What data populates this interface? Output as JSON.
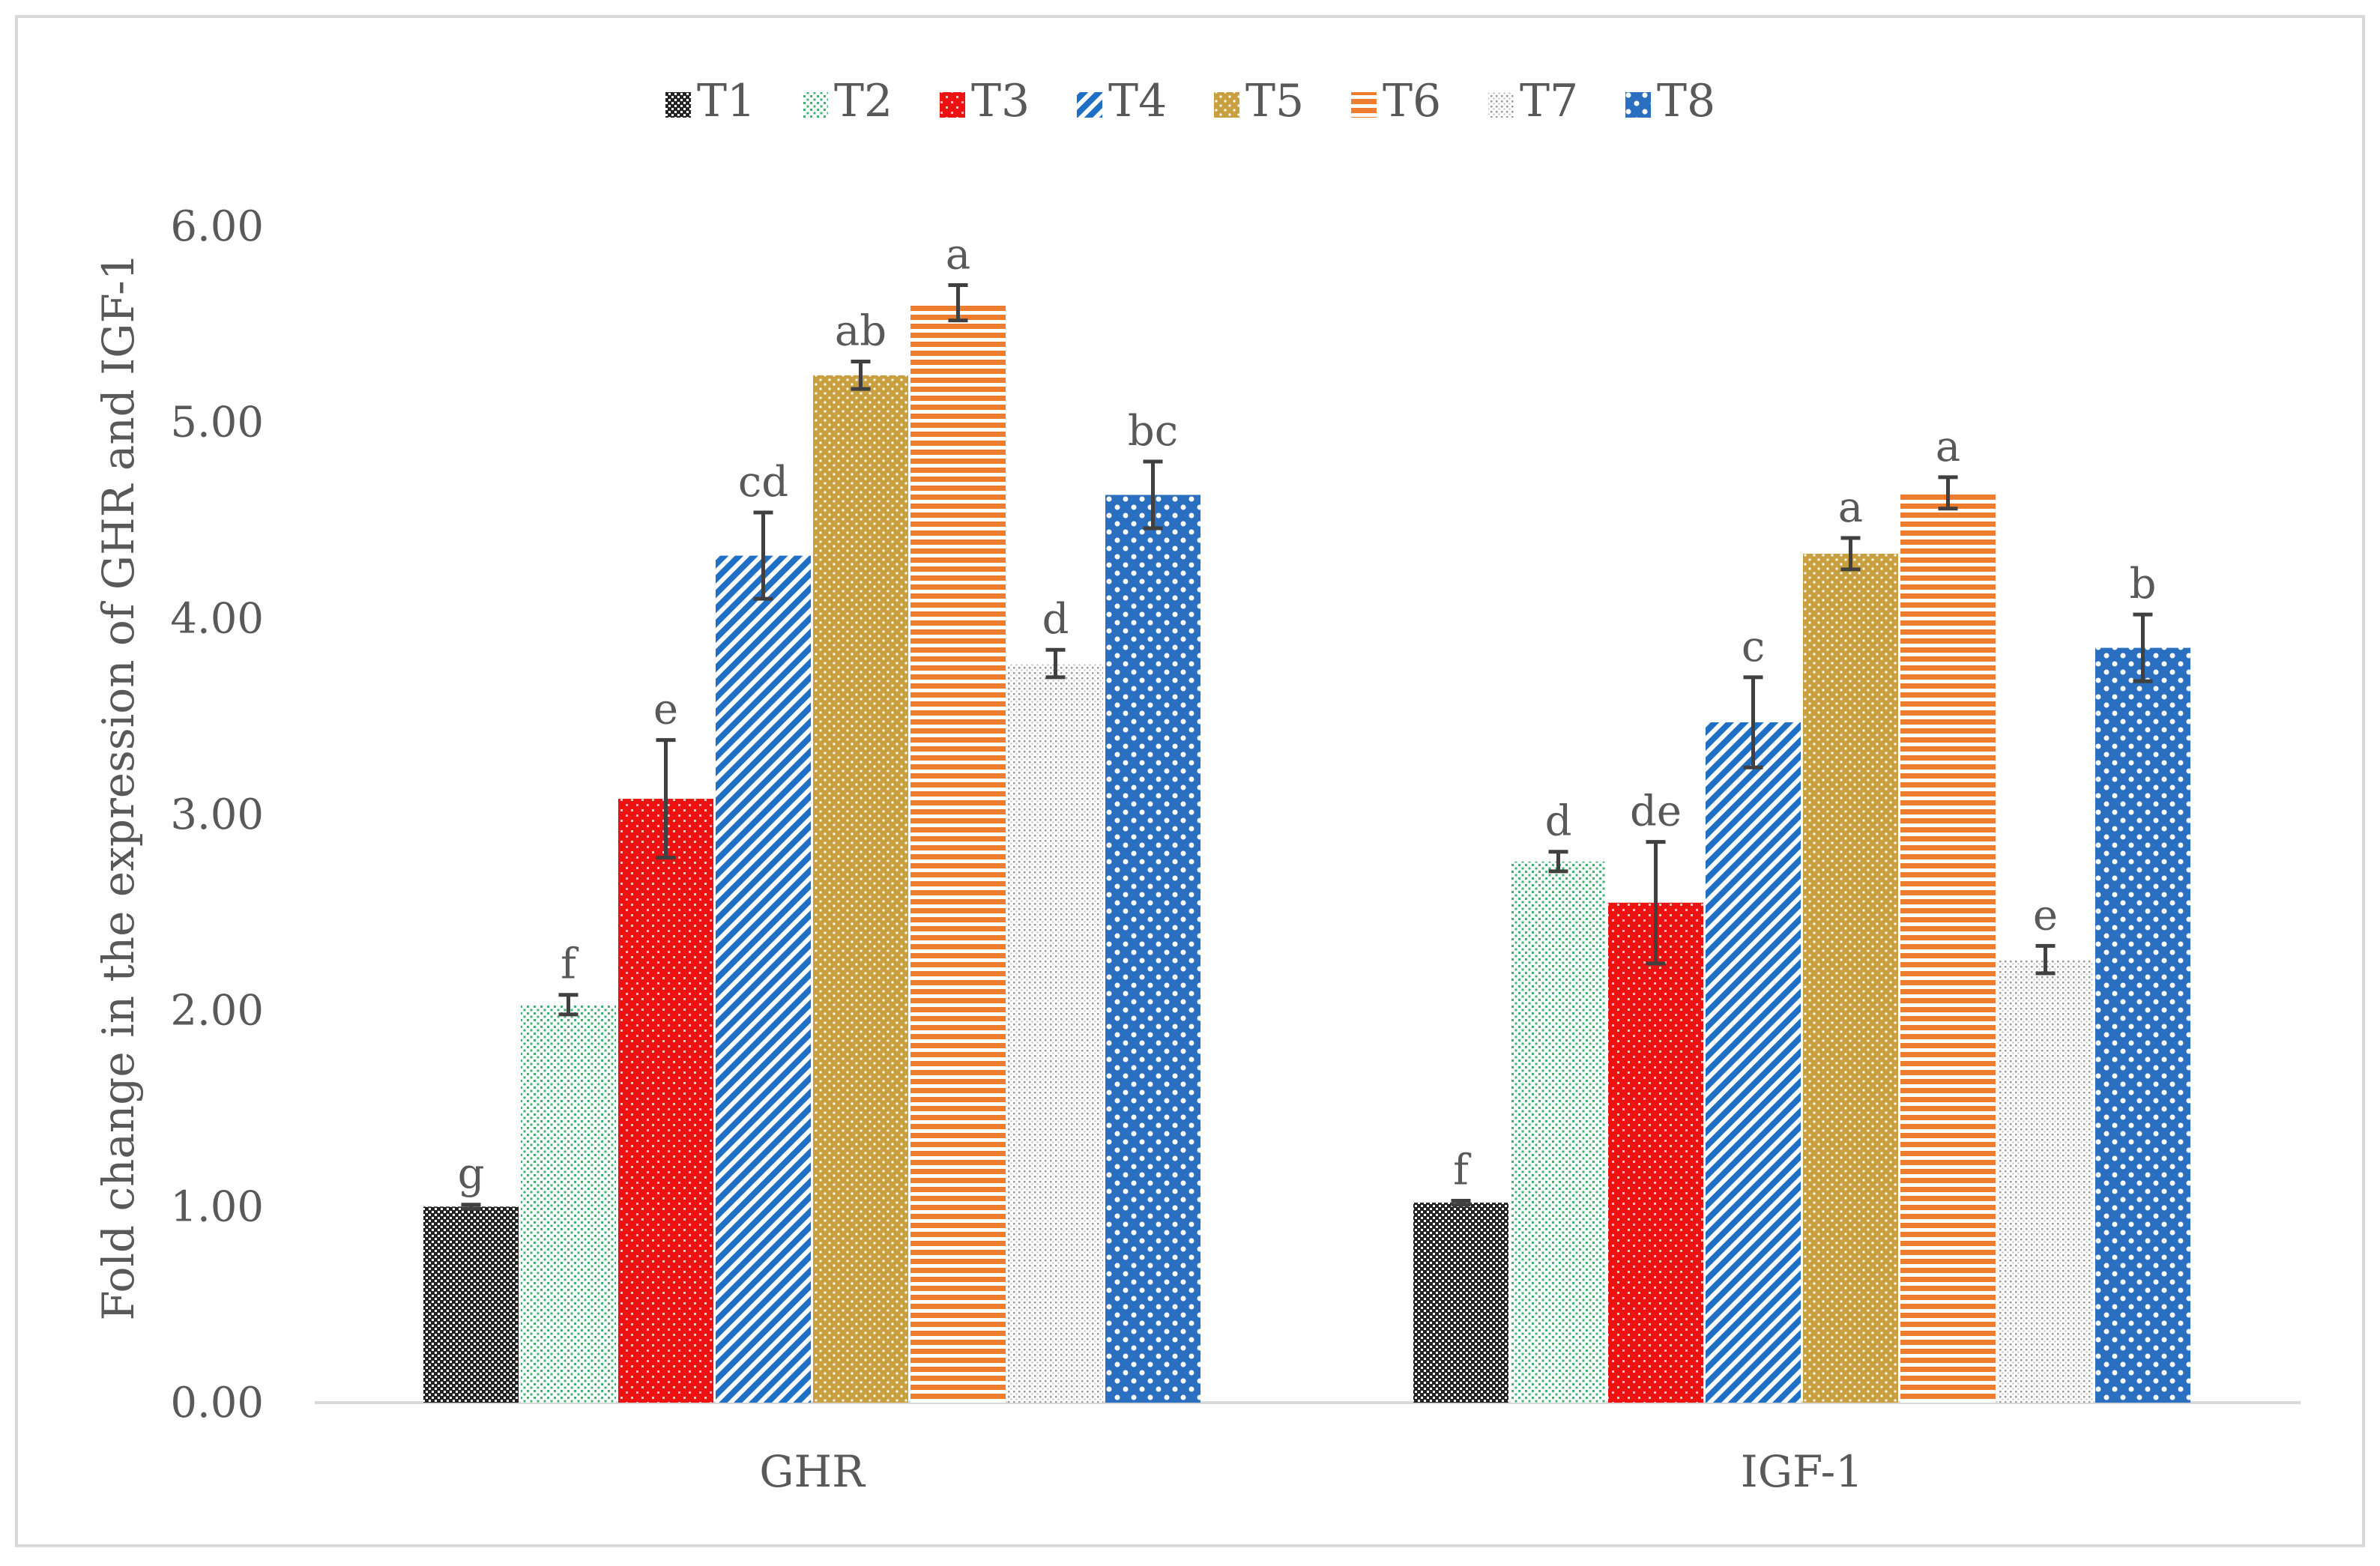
{
  "chart_data": {
    "type": "bar",
    "categories": [
      "GHR",
      "IGF-1"
    ],
    "ylabel": "Fold change in the expression of  GHR and IGF-1",
    "xlabel": "",
    "ylim": [
      0,
      6
    ],
    "yticks": [
      "0.00",
      "1.00",
      "2.00",
      "3.00",
      "4.00",
      "5.00",
      "6.00"
    ],
    "grid": false,
    "legend_position": "top",
    "series": [
      {
        "name": "T1",
        "color": "#222222",
        "pattern": "checker",
        "values": [
          1.0,
          1.02
        ],
        "errors": [
          0.01,
          0.01
        ],
        "letters": [
          "g",
          "f"
        ]
      },
      {
        "name": "T2",
        "color": "#3cb371",
        "pattern": "dots",
        "values": [
          2.03,
          2.76
        ],
        "errors": [
          0.05,
          0.05
        ],
        "letters": [
          "f",
          "d"
        ]
      },
      {
        "name": "T3",
        "color": "#ee1111",
        "pattern": "brick",
        "values": [
          3.08,
          2.55
        ],
        "errors": [
          0.3,
          0.31
        ],
        "letters": [
          "e",
          "de"
        ]
      },
      {
        "name": "T4",
        "color": "#1f6fc5",
        "pattern": "diagonal",
        "values": [
          4.32,
          3.47
        ],
        "errors": [
          0.22,
          0.23
        ],
        "letters": [
          "cd",
          "c"
        ]
      },
      {
        "name": "T5",
        "color": "#c8a040",
        "pattern": "dots-dense",
        "values": [
          5.24,
          4.33
        ],
        "errors": [
          0.07,
          0.08
        ],
        "letters": [
          "ab",
          "a"
        ]
      },
      {
        "name": "T6",
        "color": "#ef7d2f",
        "pattern": "horizontal",
        "values": [
          5.61,
          4.64
        ],
        "errors": [
          0.09,
          0.08
        ],
        "letters": [
          "a",
          "a"
        ]
      },
      {
        "name": "T7",
        "color": "#999999",
        "pattern": "dots-gray",
        "values": [
          3.77,
          2.26
        ],
        "errors": [
          0.07,
          0.07
        ],
        "letters": [
          "d",
          "e"
        ]
      },
      {
        "name": "T8",
        "color": "#2a6fc0",
        "pattern": "rings",
        "values": [
          4.63,
          3.85
        ],
        "errors": [
          0.17,
          0.17
        ],
        "letters": [
          "bc",
          "b"
        ]
      }
    ]
  }
}
